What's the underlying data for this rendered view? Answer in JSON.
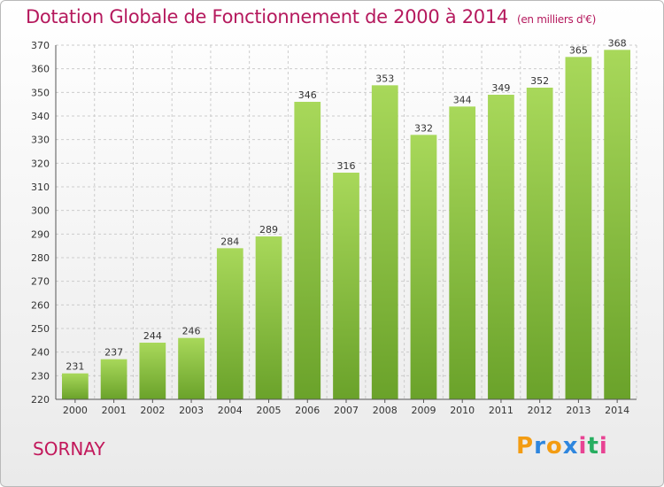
{
  "title": "Dotation Globale de Fonctionnement de 2000 à 2014",
  "unit": "(en milliers d'€)",
  "commune": "SORNAY",
  "logo": {
    "text": "Proxiti",
    "letters": [
      "P",
      "r",
      "o",
      "x",
      "i",
      "t",
      "i"
    ],
    "colors": [
      "#f39c12",
      "#2e86de",
      "#f39c12",
      "#2e86de",
      "#e84393",
      "#27ae60",
      "#e84393"
    ]
  },
  "colors": {
    "title": "#b5195d",
    "bar_light": "#a8d85a",
    "bar_dark": "#6aa22a",
    "grid": "#cccccc"
  },
  "chart_data": {
    "type": "bar",
    "title": "Dotation Globale de Fonctionnement de 2000 à 2014",
    "ylabel": "en milliers d'€",
    "xlabel": "",
    "categories": [
      "2000",
      "2001",
      "2002",
      "2003",
      "2004",
      "2005",
      "2006",
      "2007",
      "2008",
      "2009",
      "2010",
      "2011",
      "2012",
      "2013",
      "2014"
    ],
    "values": [
      231,
      237,
      244,
      246,
      284,
      289,
      346,
      316,
      353,
      332,
      344,
      349,
      352,
      365,
      368
    ],
    "ylim": [
      220,
      370
    ],
    "yticks": [
      220,
      230,
      240,
      250,
      260,
      270,
      280,
      290,
      300,
      310,
      320,
      330,
      340,
      350,
      360,
      370
    ],
    "grid": true
  }
}
